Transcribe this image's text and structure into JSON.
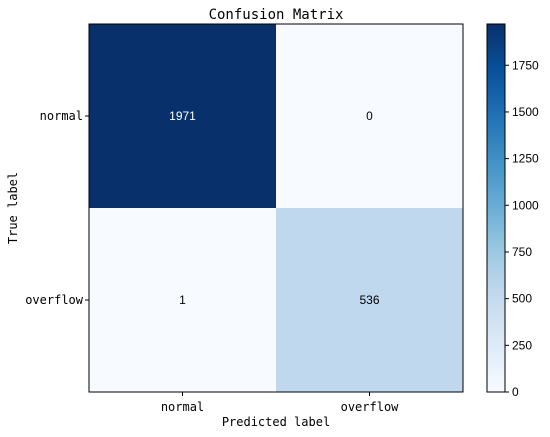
{
  "chart_data": {
    "type": "heatmap",
    "title": "Confusion Matrix",
    "xlabel": "Predicted label",
    "ylabel": "True label",
    "x_categories": [
      "normal",
      "overflow"
    ],
    "y_categories": [
      "normal",
      "overflow"
    ],
    "values": [
      [
        1971,
        0
      ],
      [
        1,
        536
      ]
    ],
    "colormap": "Blues",
    "vmin": 0,
    "vmax": 1971,
    "colorbar_ticks": [
      0,
      250,
      500,
      750,
      1000,
      1250,
      1500,
      1750
    ],
    "colorbar_tick_labels": [
      "0",
      "250",
      "500",
      "750",
      "1000",
      "1250",
      "1500",
      "1750"
    ],
    "text_color_light": "#ffffff",
    "text_color_dark": "#000000"
  }
}
